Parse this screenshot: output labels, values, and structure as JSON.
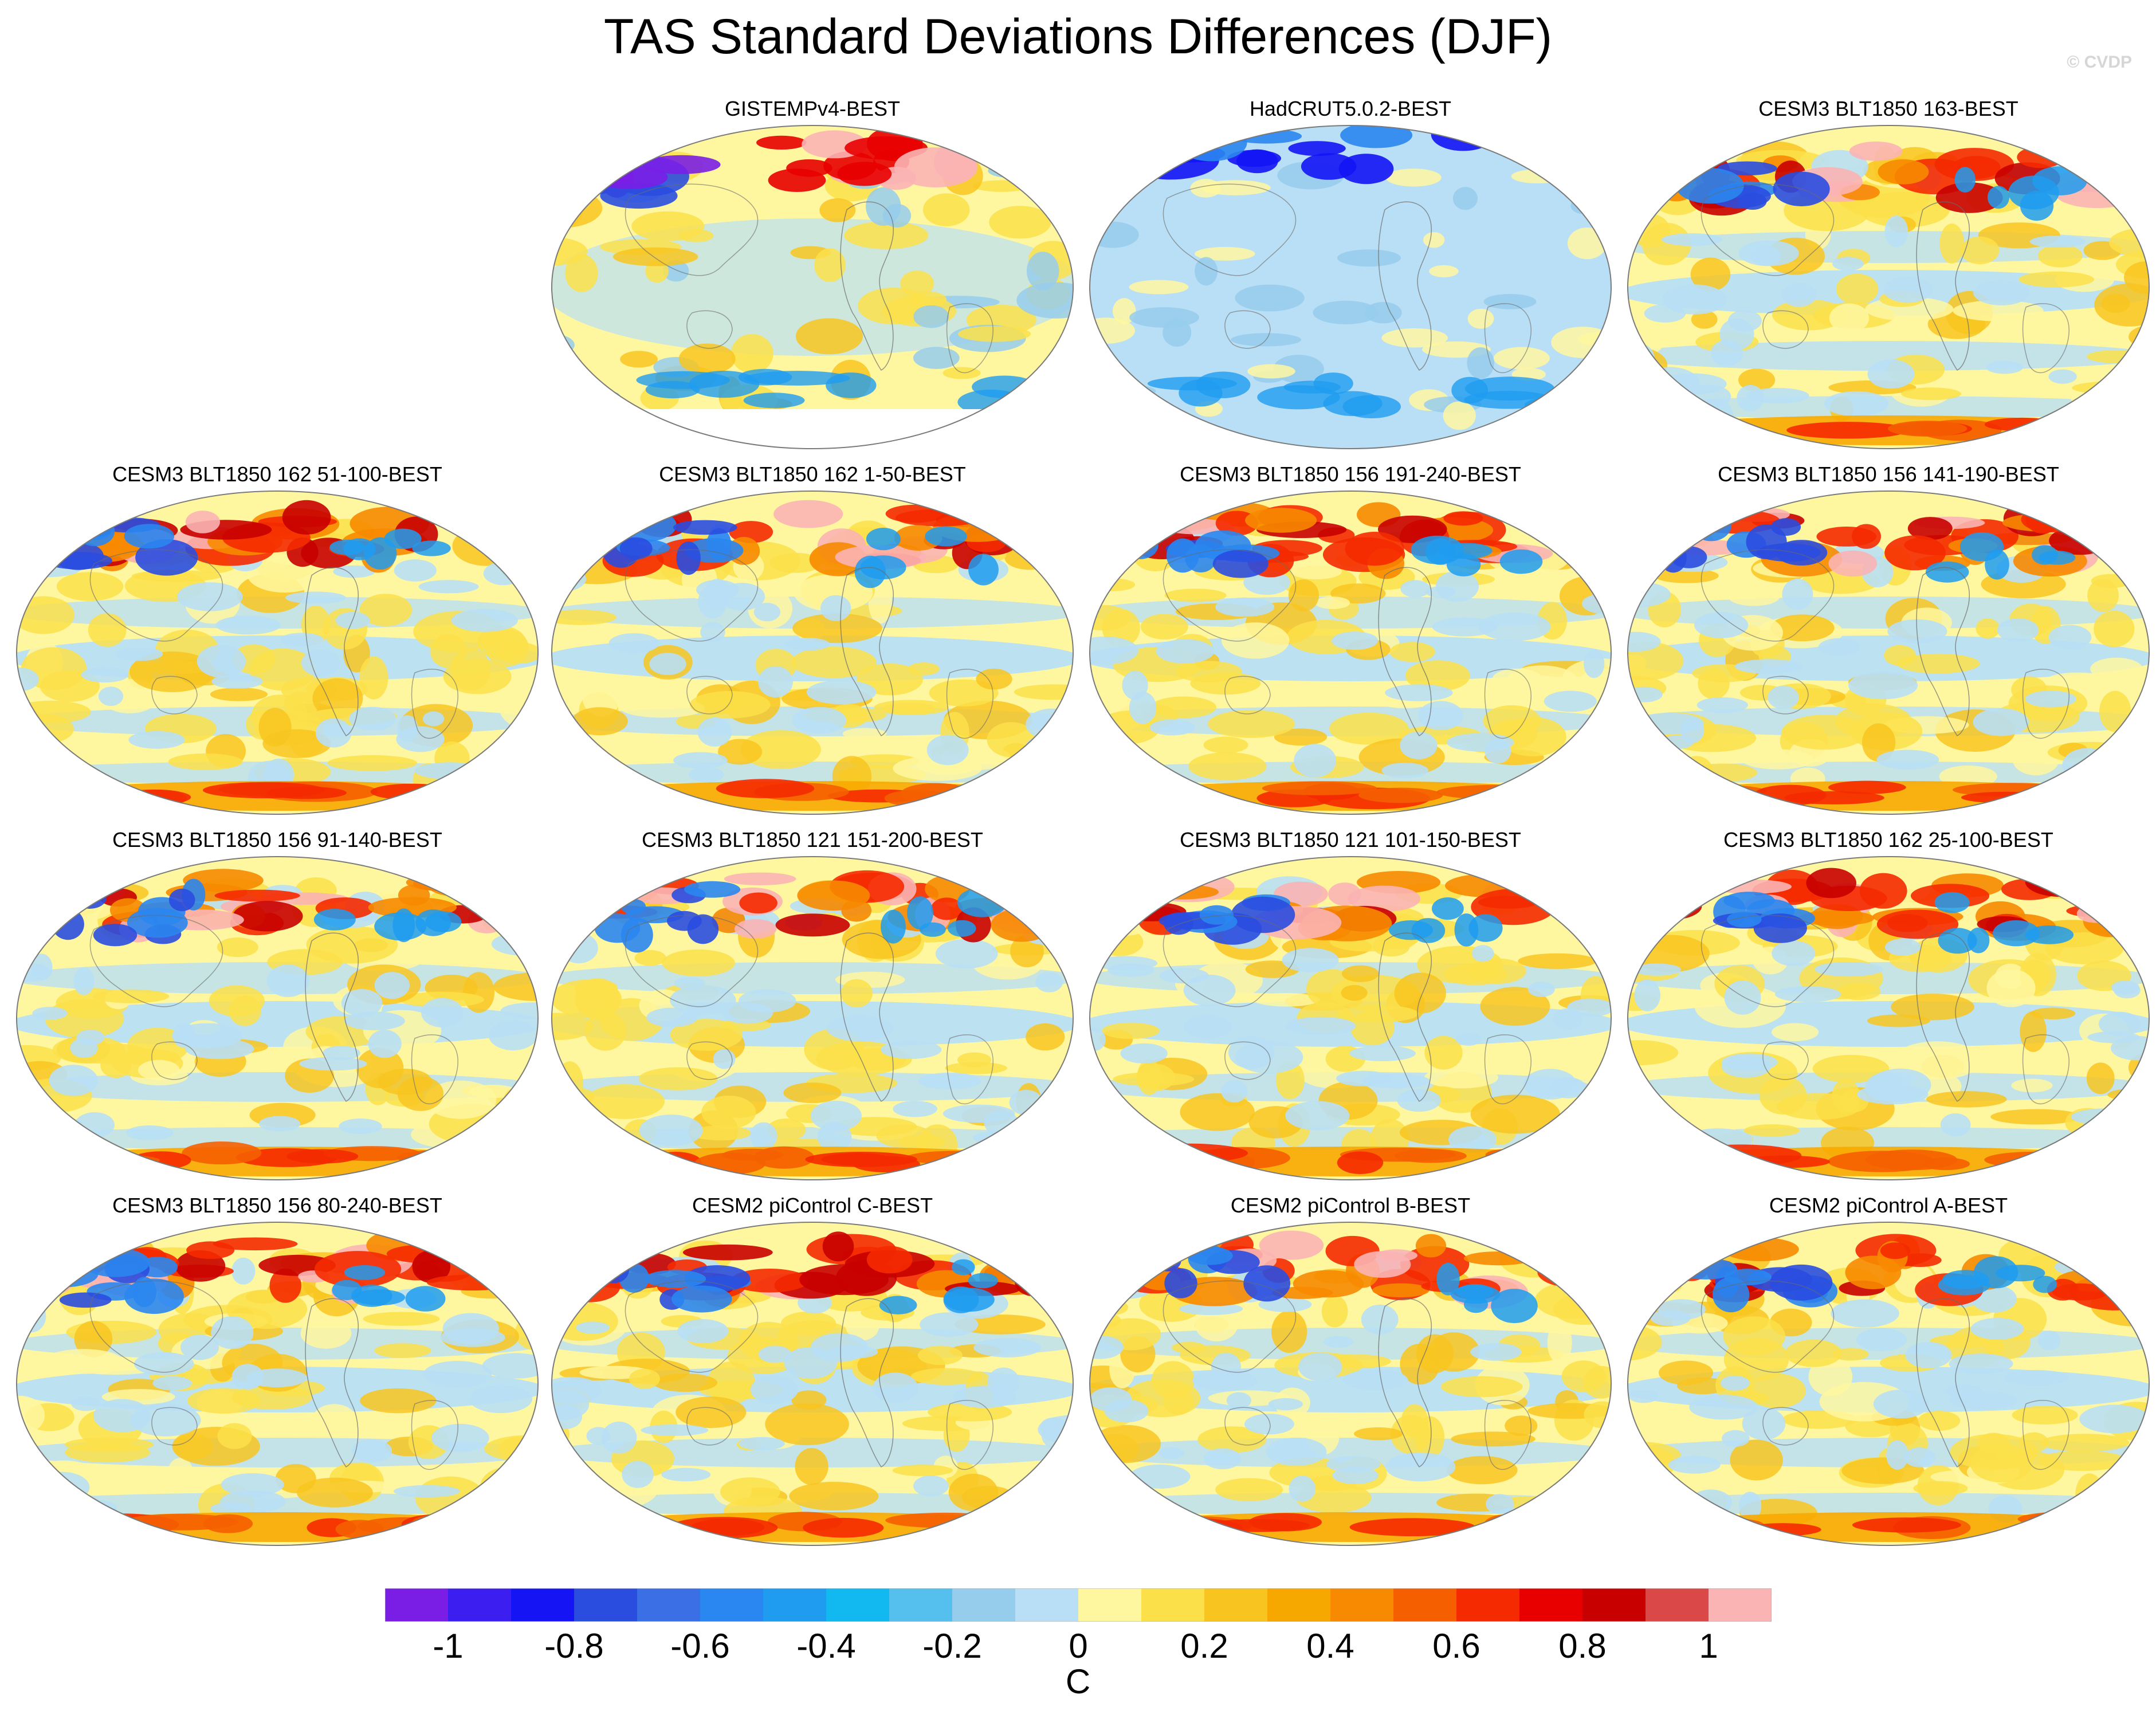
{
  "title": "TAS Standard Deviations Differences (DJF)",
  "copyright": "© CVDP",
  "panels": [
    {
      "title": "GISTEMPv4-BEST",
      "pattern": "gistemp"
    },
    {
      "title": "HadCRUT5.0.2-BEST",
      "pattern": "hadcrut"
    },
    {
      "title": "CESM3 BLT1850 163-BEST",
      "pattern": "model"
    },
    {
      "title": "CESM3 BLT1850 162 51-100-BEST",
      "pattern": "model"
    },
    {
      "title": "CESM3 BLT1850 162 1-50-BEST",
      "pattern": "model"
    },
    {
      "title": "CESM3 BLT1850 156 191-240-BEST",
      "pattern": "model"
    },
    {
      "title": "CESM3 BLT1850 156 141-190-BEST",
      "pattern": "model"
    },
    {
      "title": "CESM3 BLT1850 156 91-140-BEST",
      "pattern": "model"
    },
    {
      "title": "CESM3 BLT1850 121 151-200-BEST",
      "pattern": "model"
    },
    {
      "title": "CESM3 BLT1850 121 101-150-BEST",
      "pattern": "model"
    },
    {
      "title": "CESM3 BLT1850 162 25-100-BEST",
      "pattern": "model"
    },
    {
      "title": "CESM3 BLT1850 156 80-240-BEST",
      "pattern": "model"
    },
    {
      "title": "CESM2 piControl C-BEST",
      "pattern": "model"
    },
    {
      "title": "CESM2 piControl B-BEST",
      "pattern": "model"
    },
    {
      "title": "CESM2 piControl A-BEST",
      "pattern": "model"
    }
  ],
  "colorbar": {
    "unit": "C",
    "ticks": [
      "-1",
      "-0.8",
      "-0.6",
      "-0.4",
      "-0.2",
      "0",
      "0.2",
      "0.4",
      "0.6",
      "0.8",
      "1"
    ],
    "colors": [
      "#7a1ee6",
      "#3c1ef0",
      "#1414f5",
      "#2a4de0",
      "#3a6fe6",
      "#2a86f0",
      "#1f9cf0",
      "#12b8f0",
      "#55c0ee",
      "#96ccec",
      "#b8dff5",
      "#fff7a0",
      "#fbe04a",
      "#f8c520",
      "#f7a800",
      "#f78a00",
      "#f55f00",
      "#f52a00",
      "#e80000",
      "#c80000",
      "#db4848",
      "#fbb4b4"
    ]
  }
}
